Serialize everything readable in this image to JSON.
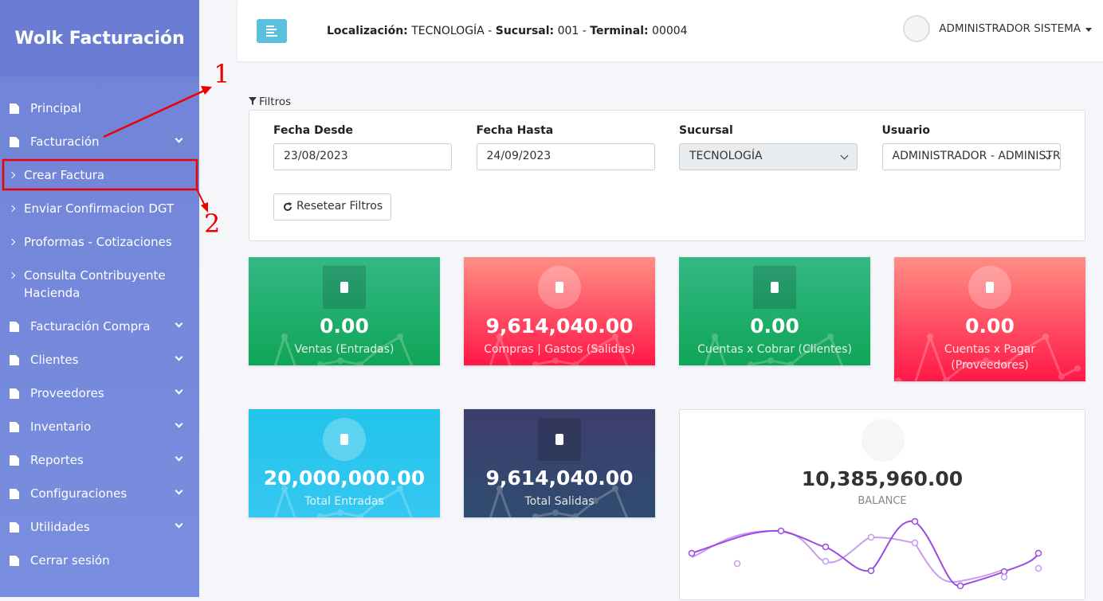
{
  "sidebar": {
    "brand": "Wolk Facturación",
    "menu": [
      {
        "label": "Principal"
      },
      {
        "label": "Facturación",
        "children": [
          {
            "label": "Crear Factura"
          },
          {
            "label": "Enviar Confirmacion DGT"
          },
          {
            "label": "Proformas - Cotizaciones"
          },
          {
            "label": "Consulta Contribuyente Hacienda"
          }
        ]
      },
      {
        "label": "Facturación Compra"
      },
      {
        "label": "Clientes"
      },
      {
        "label": "Proveedores"
      },
      {
        "label": "Inventario"
      },
      {
        "label": "Reportes"
      },
      {
        "label": "Configuraciones"
      },
      {
        "label": "Utilidades"
      },
      {
        "label": "Cerrar sesión"
      }
    ]
  },
  "header": {
    "separator": "-",
    "location": [
      {
        "label": "Localización:",
        "value": "TECNOLOGÍA"
      },
      {
        "label": "Sucursal:",
        "value": "001"
      },
      {
        "label": "Terminal:",
        "value": "00004"
      }
    ],
    "user": "ADMINISTRADOR SISTEMA"
  },
  "annotations": [
    "1",
    "2"
  ],
  "filters": {
    "title": "Filtros",
    "fields": [
      {
        "label": "Fecha Desde",
        "value": "23/08/2023"
      },
      {
        "label": "Fecha Hasta",
        "value": "24/09/2023"
      },
      {
        "label": "Sucursal",
        "value": "TECNOLOGÍA"
      },
      {
        "label": "Usuario",
        "value": "ADMINISTRADOR - ADMINISTRADOR SISTEMA"
      }
    ],
    "reset": "Resetear Filtros"
  },
  "cards": [
    {
      "value": "0.00",
      "label": "Ventas (Entradas)"
    },
    {
      "value": "9,614,040.00",
      "label": "Compras | Gastos (Salidas)"
    },
    {
      "value": "0.00",
      "label": "Cuentas x Cobrar (Clientes)"
    },
    {
      "value": "0.00",
      "label": "Cuentas x Pagar (Proveedores)"
    },
    {
      "value": "20,000,000.00",
      "label": "Total Entradas"
    },
    {
      "value": "9,614,040.00",
      "label": "Total Salidas"
    }
  ],
  "balance": {
    "value": "10,385,960.00",
    "label": "BALANCE"
  }
}
